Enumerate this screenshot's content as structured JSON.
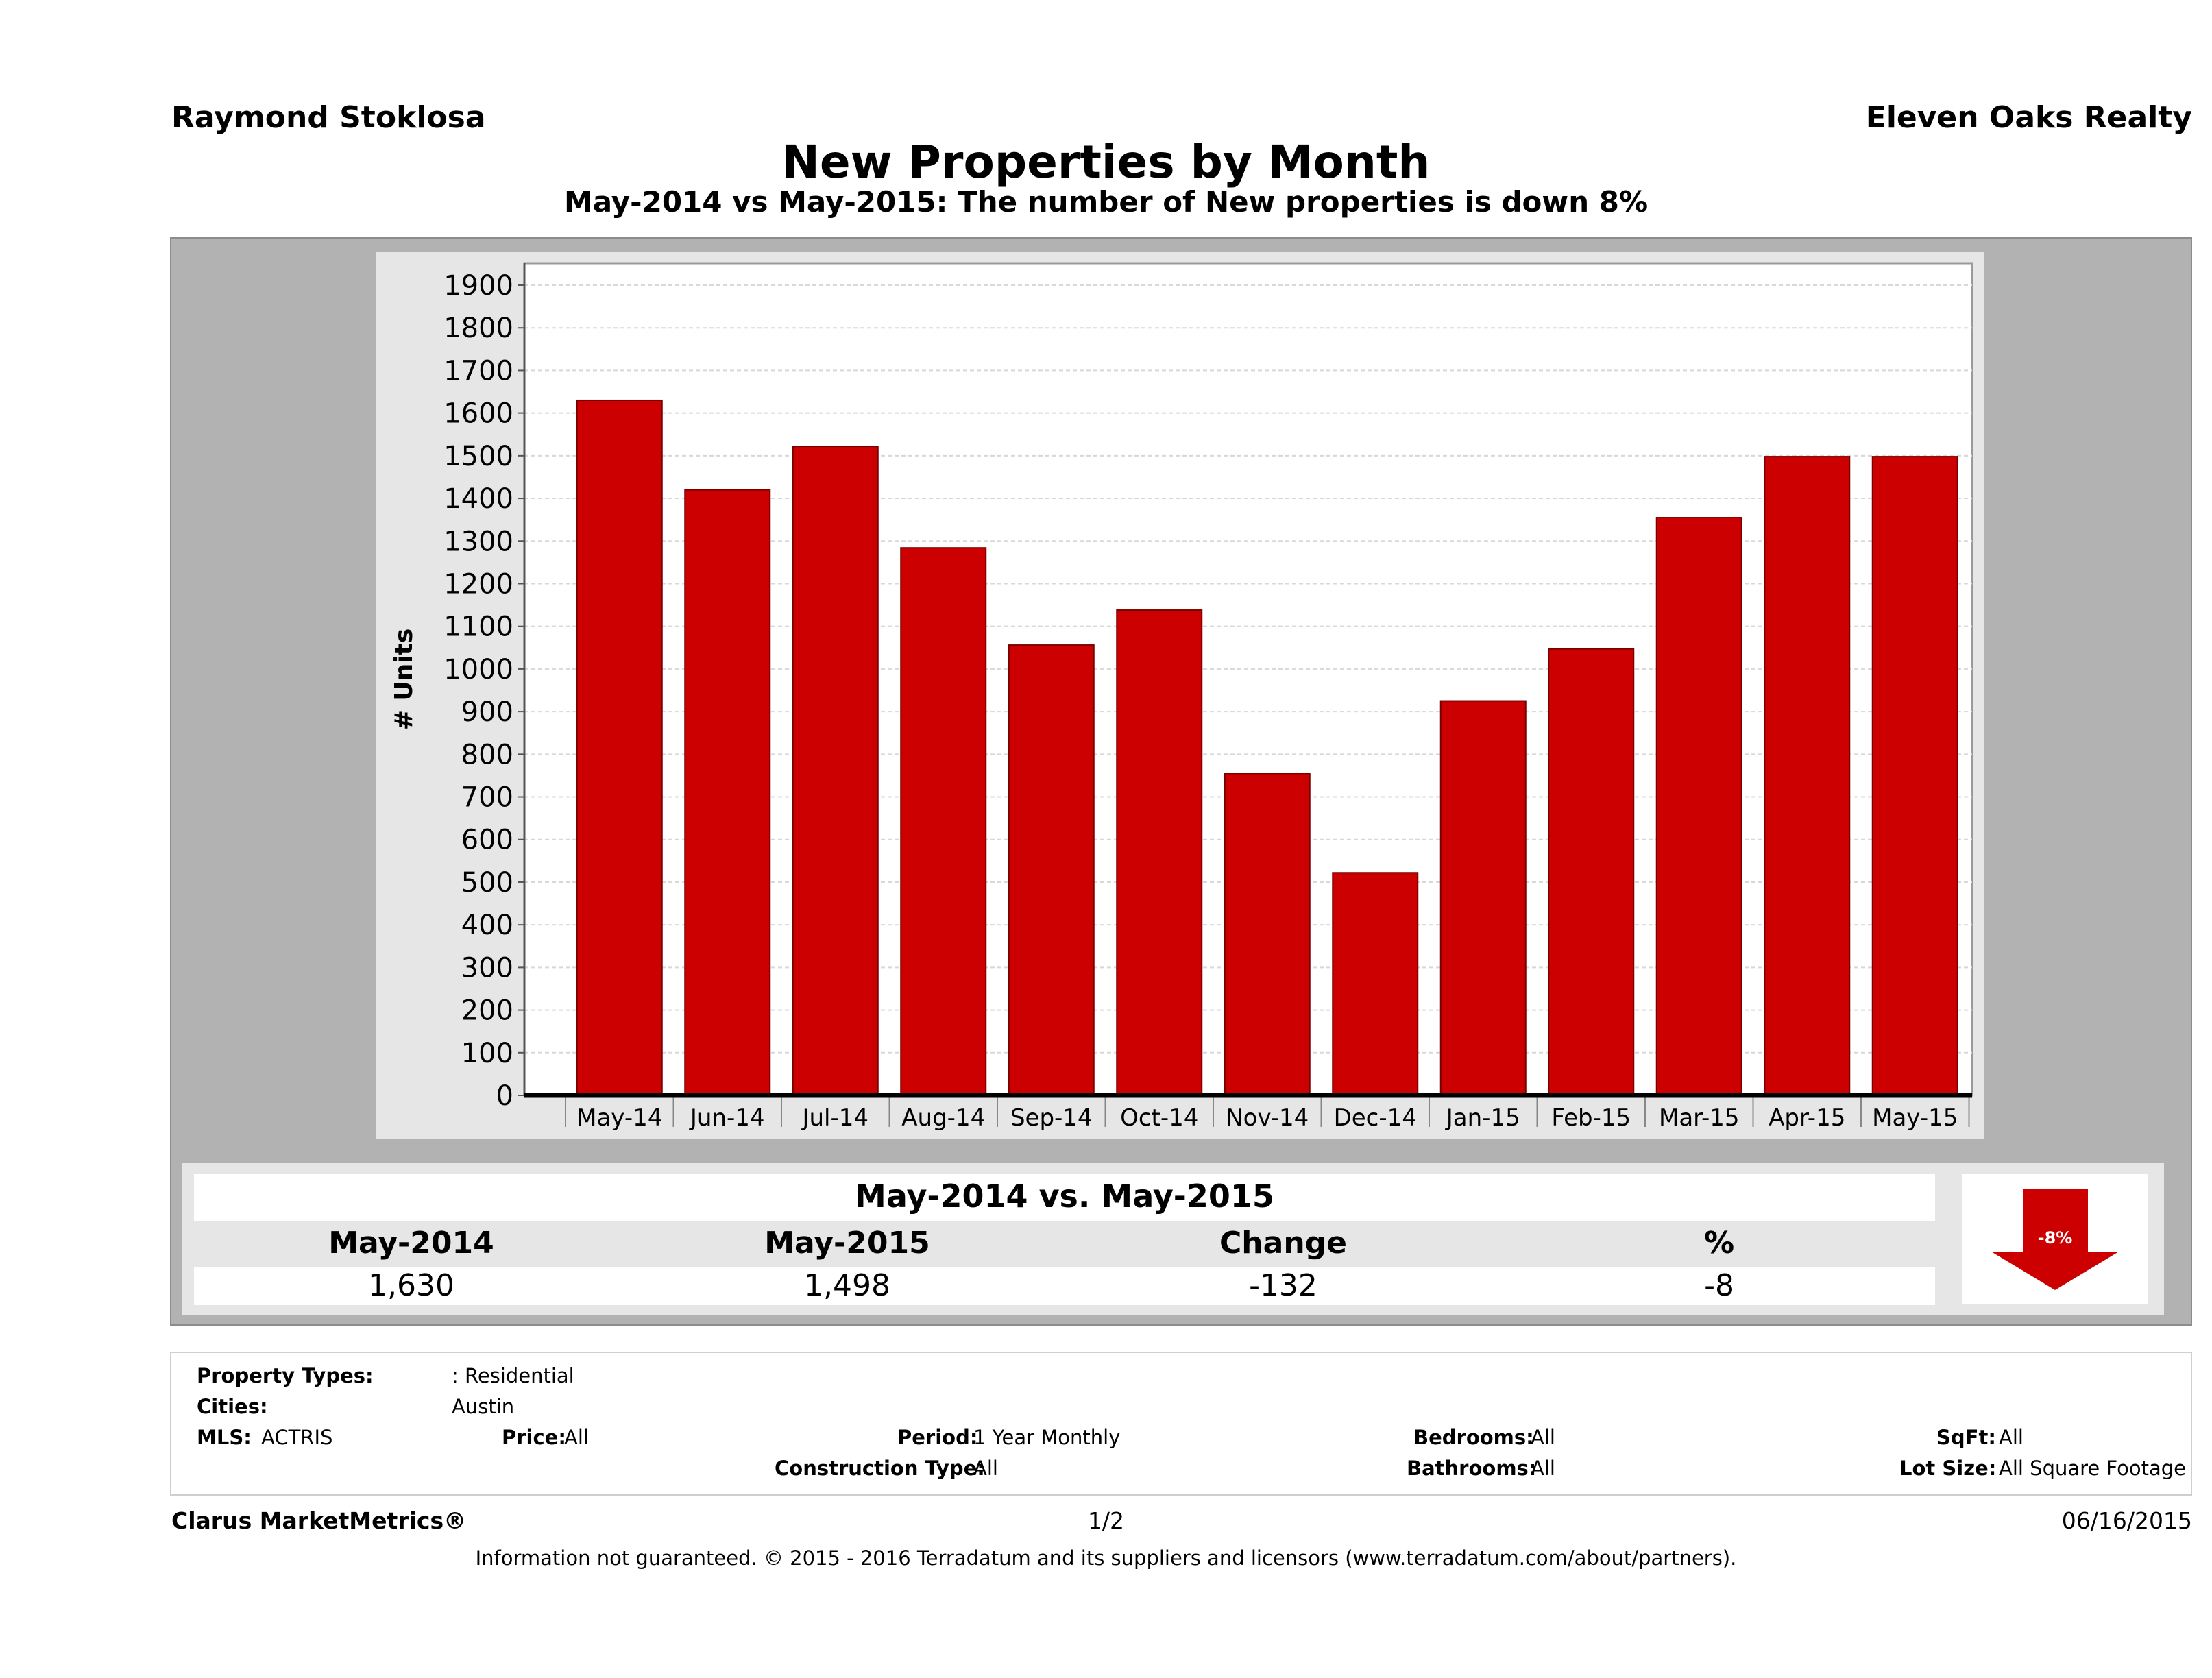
{
  "header": {
    "agent": "Raymond Stoklosa",
    "company": "Eleven Oaks Realty"
  },
  "chart_data": {
    "type": "bar",
    "title": "New Properties by Month",
    "subtitle": "May-2014 vs May-2015: The number of New  properties is down 8%",
    "xlabel": "",
    "ylabel": "# Units",
    "categories": [
      "May-14",
      "Jun-14",
      "Jul-14",
      "Aug-14",
      "Sep-14",
      "Oct-14",
      "Nov-14",
      "Dec-14",
      "Jan-15",
      "Feb-15",
      "Mar-15",
      "Apr-15",
      "May-15"
    ],
    "values": [
      1630,
      1420,
      1522,
      1284,
      1056,
      1138,
      755,
      522,
      925,
      1047,
      1355,
      1498,
      1498
    ],
    "ylim": [
      0,
      1900
    ],
    "yticks": [
      0,
      100,
      200,
      300,
      400,
      500,
      600,
      700,
      800,
      900,
      1000,
      1100,
      1200,
      1300,
      1400,
      1500,
      1600,
      1700,
      1800,
      1900
    ],
    "grid": true,
    "bar_color": "#cc0000"
  },
  "summary": {
    "title": "May-2014 vs. May-2015",
    "columns": [
      "May-2014",
      "May-2015",
      "Change",
      "%"
    ],
    "values": [
      "1,630",
      "1,498",
      "-132",
      "-8"
    ],
    "badge": "-8%",
    "badge_color": "#cc0000"
  },
  "filters": {
    "property_types_label": "Property Types:",
    "property_types_value": ": Residential",
    "cities_label": "Cities:",
    "cities_value": "Austin",
    "mls_label": "MLS:",
    "mls_value": "ACTRIS",
    "price_label": "Price:",
    "price_value": "All",
    "period_label": "Period:",
    "period_value": "1 Year Monthly",
    "construction_label": "Construction Type:",
    "construction_value": "All",
    "bedrooms_label": "Bedrooms:",
    "bedrooms_value": "All",
    "bathrooms_label": "Bathrooms:",
    "bathrooms_value": "All",
    "sqft_label": "SqFt:",
    "sqft_value": "All",
    "lot_label": "Lot Size:",
    "lot_value": "All Square Footage"
  },
  "footer": {
    "brand": "Clarus MarketMetrics®",
    "page": "1/2",
    "date": "06/16/2015",
    "disclaimer": "Information not guaranteed. © 2015 - 2016 Terradatum and its suppliers and licensors (www.terradatum.com/about/partners)."
  }
}
